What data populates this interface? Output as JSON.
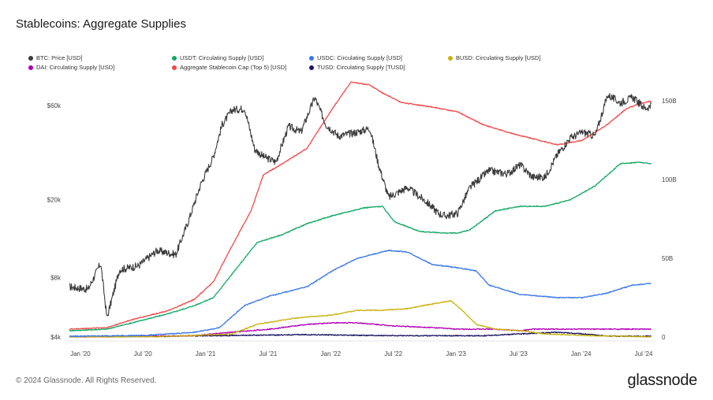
{
  "title": "Stablecoins: Aggregate Supplies",
  "footer": {
    "copyright": "© 2024 Glassnode. All Rights Reserved.",
    "brand": "glassnode"
  },
  "legend": [
    {
      "label": "BTC: Price [USD]",
      "color": "#3a3a3a"
    },
    {
      "label": "USDT: Circulating Supply [USD]",
      "color": "#16a765"
    },
    {
      "label": "USDC: Circulating Supply [USD]",
      "color": "#3b78e7"
    },
    {
      "label": "BUSD: Circulating Supply [USD]",
      "color": "#c9b20f"
    },
    {
      "label": "DAI: Circulating Supply [USD]",
      "color": "#b000b5"
    },
    {
      "label": "Aggregate Stablecoin Cap (Top 5) [USD]",
      "color": "#f04a4a"
    },
    {
      "label": "TUSD: Circulating Supply [TUSD]",
      "color": "#1b1464"
    }
  ],
  "chart_data": {
    "type": "line",
    "x_ticks": [
      "Jan '20",
      "Jul '20",
      "Jan '21",
      "Jul '21",
      "Jan '22",
      "Jul '22",
      "Jan '23",
      "Jul '23",
      "Jan '24",
      "Jul '24"
    ],
    "y_left_ticks": [
      "$60k",
      "$20k",
      "$8k",
      "$4k"
    ],
    "y_left_scale": "log",
    "y_right_ticks": [
      "150B",
      "100B",
      "50B",
      "0"
    ],
    "y_right_range": [
      0,
      150
    ],
    "grid": false,
    "legend_position": "top",
    "series": [
      {
        "name": "BTC: Price [USD]",
        "axis": "left",
        "color": "#3a3a3a",
        "t": [
          2019.9,
          2020.05,
          2020.15,
          2020.2,
          2020.3,
          2020.45,
          2020.6,
          2020.75,
          2020.85,
          2020.95,
          2021.05,
          2021.12,
          2021.2,
          2021.3,
          2021.38,
          2021.45,
          2021.55,
          2021.65,
          2021.75,
          2021.86,
          2021.95,
          2022.05,
          2022.2,
          2022.3,
          2022.37,
          2022.45,
          2022.6,
          2022.75,
          2022.85,
          2022.9,
          2023.0,
          2023.1,
          2023.25,
          2023.4,
          2023.5,
          2023.6,
          2023.7,
          2023.8,
          2023.9,
          2024.0,
          2024.1,
          2024.2,
          2024.3,
          2024.4,
          2024.5,
          2024.55
        ],
        "v": [
          7200,
          7000,
          9500,
          5000,
          8800,
          9200,
          11000,
          10500,
          15500,
          24000,
          33000,
          48000,
          57000,
          58000,
          36000,
          33000,
          31000,
          47000,
          44000,
          66000,
          48000,
          42000,
          44000,
          46000,
          30000,
          20500,
          23000,
          19500,
          17000,
          16500,
          17000,
          23000,
          28000,
          27000,
          30000,
          26000,
          26000,
          34000,
          41000,
          44000,
          42000,
          68000,
          62000,
          66000,
          58000,
          60000
        ]
      },
      {
        "name": "USDT: Circulating Supply [USD]",
        "axis": "right",
        "color": "#16a765",
        "t": [
          2019.9,
          2020.2,
          2020.4,
          2020.7,
          2020.9,
          2021.05,
          2021.2,
          2021.4,
          2021.6,
          2021.8,
          2022.0,
          2022.25,
          2022.4,
          2022.5,
          2022.7,
          2022.9,
          2023.0,
          2023.1,
          2023.3,
          2023.5,
          2023.7,
          2023.9,
          2024.1,
          2024.3,
          2024.45,
          2024.55
        ],
        "v": [
          4,
          5,
          9,
          15,
          20,
          25,
          40,
          60,
          65,
          72,
          77,
          82,
          83,
          73,
          67,
          66,
          66,
          68,
          80,
          83,
          83,
          87,
          96,
          110,
          111,
          110
        ]
      },
      {
        "name": "USDC: Circulating Supply [USD]",
        "axis": "right",
        "color": "#3b78e7",
        "t": [
          2019.9,
          2020.5,
          2020.9,
          2021.1,
          2021.3,
          2021.5,
          2021.8,
          2022.0,
          2022.2,
          2022.45,
          2022.6,
          2022.8,
          2023.0,
          2023.15,
          2023.25,
          2023.5,
          2023.8,
          2024.0,
          2024.2,
          2024.4,
          2024.55
        ],
        "v": [
          0.5,
          1,
          3,
          6,
          20,
          26,
          32,
          42,
          50,
          55,
          54,
          46,
          44,
          42,
          33,
          27,
          25,
          25,
          28,
          33,
          34
        ]
      },
      {
        "name": "BUSD: Circulating Supply [USD]",
        "axis": "right",
        "color": "#c9b20f",
        "t": [
          2019.9,
          2020.6,
          2020.9,
          2021.2,
          2021.4,
          2021.7,
          2022.0,
          2022.2,
          2022.4,
          2022.6,
          2022.8,
          2022.95,
          2023.05,
          2023.15,
          2023.3,
          2023.5,
          2023.7,
          2024.0,
          2024.55
        ],
        "v": [
          0.1,
          0.2,
          1,
          2,
          8,
          12,
          14,
          17,
          17,
          18,
          21,
          23,
          16,
          8,
          5,
          4,
          2,
          1,
          0.1
        ]
      },
      {
        "name": "DAI: Circulating Supply [USD]",
        "axis": "right",
        "color": "#b000b5",
        "t": [
          2019.9,
          2020.6,
          2020.9,
          2021.2,
          2021.5,
          2021.8,
          2022.0,
          2022.2,
          2022.5,
          2022.8,
          2023.0,
          2023.3,
          2023.5,
          2023.6,
          2024.0,
          2024.55
        ],
        "v": [
          0.1,
          0.5,
          1,
          3,
          5,
          8,
          9,
          9,
          7,
          6,
          5,
          5,
          4,
          5,
          5,
          5
        ]
      },
      {
        "name": "Aggregate Stablecoin Cap (Top 5) [USD]",
        "axis": "right",
        "color": "#f04a4a",
        "t": [
          2019.9,
          2020.2,
          2020.4,
          2020.7,
          2020.9,
          2021.05,
          2021.2,
          2021.35,
          2021.45,
          2021.6,
          2021.8,
          2022.0,
          2022.15,
          2022.3,
          2022.4,
          2022.55,
          2022.8,
          2023.0,
          2023.2,
          2023.4,
          2023.6,
          2023.8,
          2024.0,
          2024.2,
          2024.35,
          2024.45,
          2024.55
        ],
        "v": [
          5,
          6,
          11,
          17,
          24,
          35,
          58,
          80,
          103,
          110,
          120,
          145,
          162,
          160,
          155,
          149,
          146,
          143,
          135,
          130,
          126,
          122,
          125,
          135,
          145,
          148,
          150
        ]
      },
      {
        "name": "TUSD: Circulating Supply [TUSD]",
        "axis": "right",
        "color": "#1b1464",
        "t": [
          2019.9,
          2020.7,
          2021.2,
          2021.8,
          2022.3,
          2022.8,
          2023.2,
          2023.5,
          2023.8,
          2024.0,
          2024.2,
          2024.55
        ],
        "v": [
          0.2,
          0.5,
          1,
          1.5,
          1,
          0.8,
          0.8,
          2,
          3,
          2,
          0.6,
          0.5
        ]
      }
    ]
  }
}
